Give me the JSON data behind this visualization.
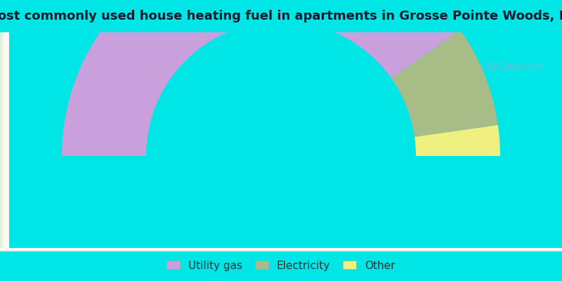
{
  "title": "Most commonly used house heating fuel in apartments in Grosse Pointe Woods, MI",
  "title_fontsize": 13,
  "title_color": "#1a1a2e",
  "outer_background": "#00e5e5",
  "chart_area_left": "#b8d8c0",
  "chart_area_center": "#f0f8f0",
  "segments": [
    {
      "label": "Utility gas",
      "value": 80.5,
      "color": "#c9a0dc"
    },
    {
      "label": "Electricity",
      "value": 15.0,
      "color": "#a8bc88"
    },
    {
      "label": "Other",
      "value": 4.5,
      "color": "#f0f080"
    }
  ],
  "watermark": "City-Data.com",
  "title_bar_height": 0.115,
  "legend_bar_height": 0.105
}
